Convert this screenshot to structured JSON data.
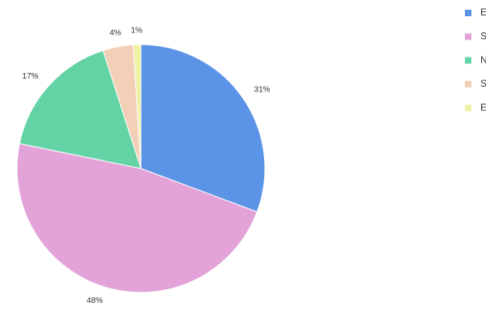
{
  "chart_data": {
    "type": "pie",
    "categories": [
      "E",
      "S",
      "N",
      "S",
      "E"
    ],
    "values": [
      31,
      48,
      17,
      4,
      1
    ],
    "value_labels": [
      "31%",
      "48%",
      "17%",
      "4%",
      "1%"
    ],
    "colors": [
      "#5b93e6",
      "#e3a3d9",
      "#63d3a5",
      "#f2cfb6",
      "#eef0a6"
    ],
    "legend": "right"
  }
}
